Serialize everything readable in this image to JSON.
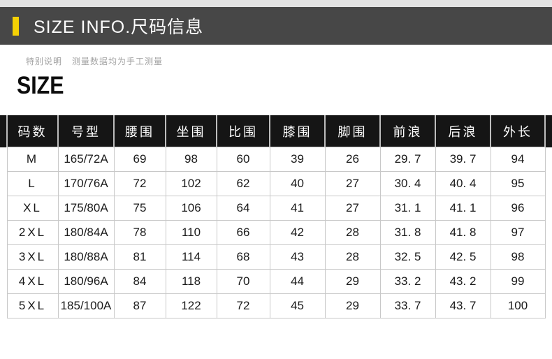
{
  "banner": {
    "title": "SIZE INFO.尺码信息",
    "accent_color": "#f5d104",
    "background_color": "#474747"
  },
  "note": {
    "label": "特别说明",
    "text": "测量数据均为手工测量"
  },
  "section_title": "SIZE",
  "chart_data": {
    "type": "table",
    "title": "SIZE INFO.尺码信息",
    "columns": [
      "码数",
      "号型",
      "腰围",
      "坐围",
      "比围",
      "膝围",
      "脚围",
      "前浪",
      "后浪",
      "外长"
    ],
    "rows": [
      [
        "M",
        "165/72A",
        "69",
        "98",
        "60",
        "39",
        "26",
        "29.7",
        "39.7",
        "94"
      ],
      [
        "L",
        "170/76A",
        "72",
        "102",
        "62",
        "40",
        "27",
        "30.4",
        "40.4",
        "95"
      ],
      [
        "XL",
        "175/80A",
        "75",
        "106",
        "64",
        "41",
        "27",
        "31.1",
        "41.1",
        "96"
      ],
      [
        "2XL",
        "180/84A",
        "78",
        "110",
        "66",
        "42",
        "28",
        "31.8",
        "41.8",
        "97"
      ],
      [
        "3XL",
        "180/88A",
        "81",
        "114",
        "68",
        "43",
        "28",
        "32.5",
        "42.5",
        "98"
      ],
      [
        "4XL",
        "180/96A",
        "84",
        "118",
        "70",
        "44",
        "29",
        "33.2",
        "43.2",
        "99"
      ],
      [
        "5XL",
        "185/100A",
        "87",
        "122",
        "72",
        "45",
        "29",
        "33.7",
        "43.7",
        "100"
      ]
    ],
    "layout": {
      "header_background": "#151515",
      "header_text_color": "#ffffff",
      "grid_line_color": "#c8c8c8",
      "grid": true
    }
  }
}
